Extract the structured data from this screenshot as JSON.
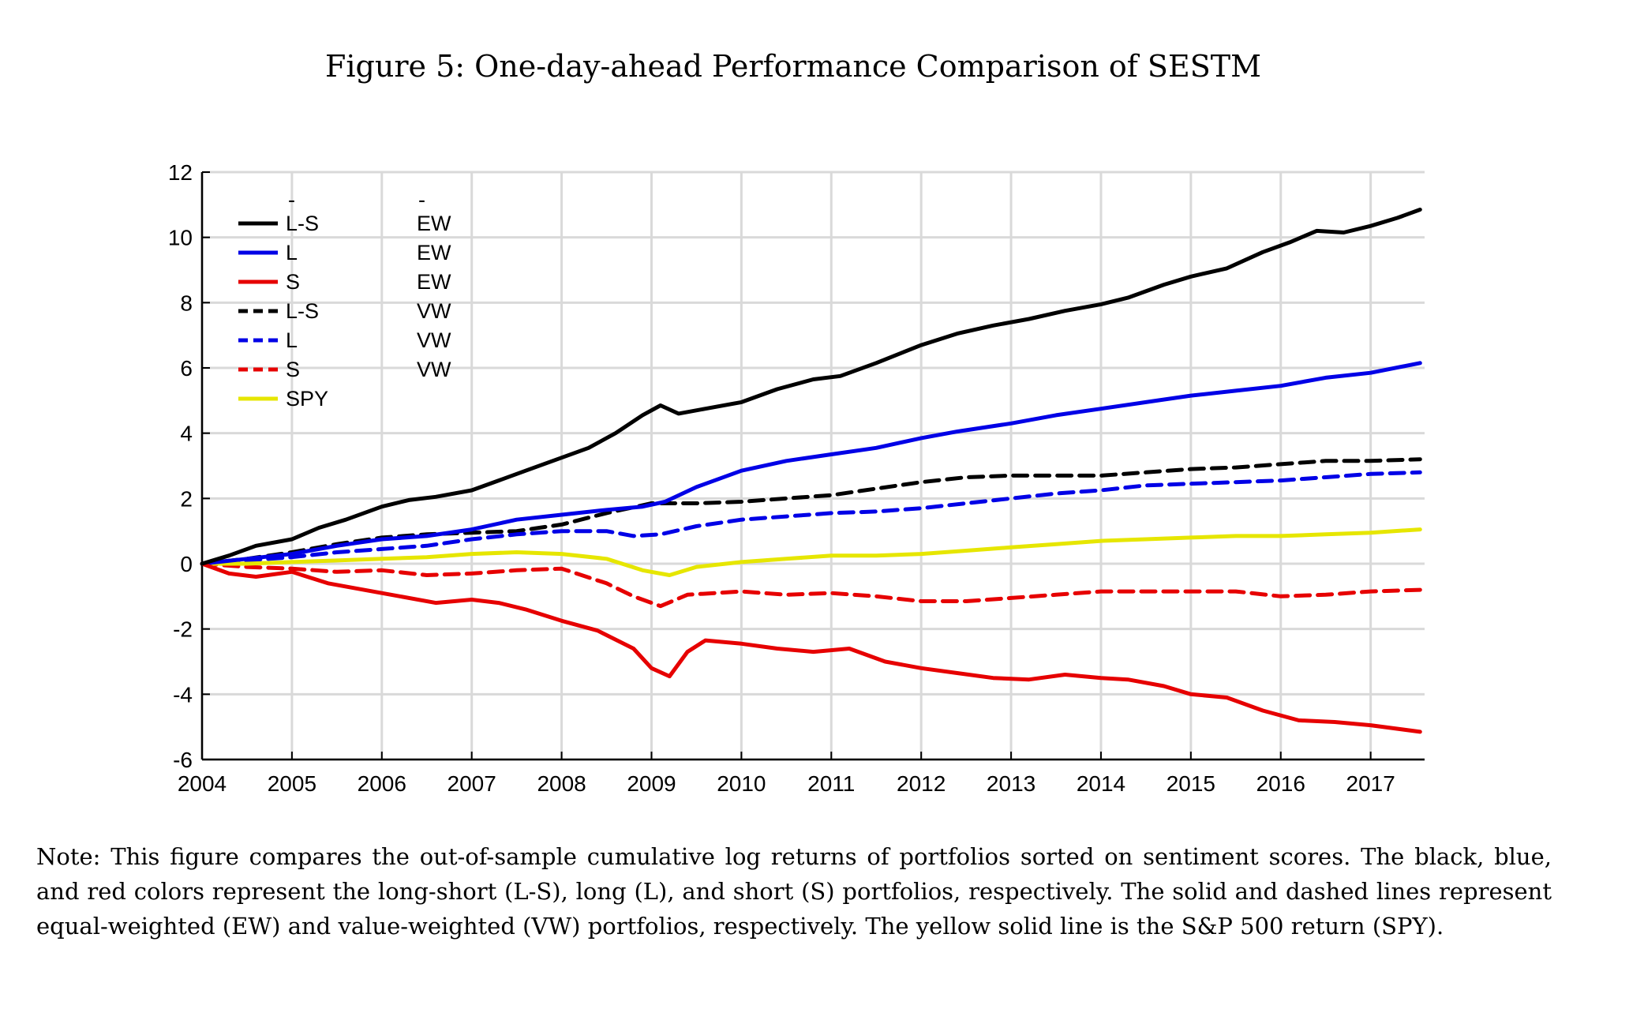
{
  "figure": {
    "title": "Figure 5: One-day-ahead Performance Comparison of SESTM",
    "note": "Note: This figure compares the out-of-sample cumulative log returns of portfolios sorted on sentiment scores. The black, blue, and red colors represent the long-short (L-S), long (L), and short (S) portfolios, respectively. The solid and dashed lines represent equal-weighted (EW) and value-weighted (VW) portfolios, respectively. The yellow solid line is the S&P 500 return (SPY)."
  },
  "chart_data": {
    "type": "line",
    "title": "",
    "xlabel": "",
    "ylabel": "",
    "xlim": [
      2004,
      2017.6
    ],
    "ylim": [
      -6,
      12
    ],
    "xticks": [
      "2004",
      "2005",
      "2006",
      "2007",
      "2008",
      "2009",
      "2010",
      "2011",
      "2012",
      "2013",
      "2014",
      "2015",
      "2016",
      "2017"
    ],
    "yticks": [
      "12",
      "10",
      "8",
      "6",
      "4",
      "2",
      "0",
      "-2",
      "-4",
      "-6"
    ],
    "grid": true,
    "legend": {
      "placement": "top-left",
      "header": [
        "-",
        "-"
      ],
      "entries": [
        {
          "label": "L-S",
          "weight": "EW"
        },
        {
          "label": "L",
          "weight": "EW"
        },
        {
          "label": "S",
          "weight": "EW"
        },
        {
          "label": "L-S",
          "weight": "VW"
        },
        {
          "label": "L",
          "weight": "VW"
        },
        {
          "label": "S",
          "weight": "VW"
        },
        {
          "label": "SPY",
          "weight": ""
        }
      ]
    },
    "series": [
      {
        "legend": "L-S EW",
        "color": "#000000",
        "dash": false,
        "points": [
          [
            2004,
            0
          ],
          [
            2004.3,
            0.25
          ],
          [
            2004.6,
            0.55
          ],
          [
            2005,
            0.75
          ],
          [
            2005.3,
            1.1
          ],
          [
            2005.6,
            1.35
          ],
          [
            2006,
            1.75
          ],
          [
            2006.3,
            1.95
          ],
          [
            2006.6,
            2.05
          ],
          [
            2007,
            2.25
          ],
          [
            2007.3,
            2.55
          ],
          [
            2007.6,
            2.85
          ],
          [
            2008,
            3.25
          ],
          [
            2008.3,
            3.55
          ],
          [
            2008.6,
            4.0
          ],
          [
            2008.9,
            4.55
          ],
          [
            2009.1,
            4.85
          ],
          [
            2009.3,
            4.6
          ],
          [
            2009.6,
            4.75
          ],
          [
            2010,
            4.95
          ],
          [
            2010.4,
            5.35
          ],
          [
            2010.8,
            5.65
          ],
          [
            2011.1,
            5.75
          ],
          [
            2011.5,
            6.15
          ],
          [
            2012,
            6.7
          ],
          [
            2012.4,
            7.05
          ],
          [
            2012.8,
            7.3
          ],
          [
            2013.2,
            7.5
          ],
          [
            2013.6,
            7.75
          ],
          [
            2014,
            7.95
          ],
          [
            2014.3,
            8.15
          ],
          [
            2014.7,
            8.55
          ],
          [
            2015,
            8.8
          ],
          [
            2015.4,
            9.05
          ],
          [
            2015.8,
            9.55
          ],
          [
            2016.1,
            9.85
          ],
          [
            2016.4,
            10.2
          ],
          [
            2016.7,
            10.15
          ],
          [
            2017,
            10.35
          ],
          [
            2017.3,
            10.6
          ],
          [
            2017.55,
            10.85
          ]
        ]
      },
      {
        "legend": "L EW",
        "color": "#0000e6",
        "dash": false,
        "points": [
          [
            2004,
            0
          ],
          [
            2004.5,
            0.15
          ],
          [
            2005,
            0.3
          ],
          [
            2005.5,
            0.55
          ],
          [
            2006,
            0.75
          ],
          [
            2006.5,
            0.85
          ],
          [
            2007,
            1.05
          ],
          [
            2007.5,
            1.35
          ],
          [
            2008,
            1.5
          ],
          [
            2008.5,
            1.65
          ],
          [
            2008.9,
            1.75
          ],
          [
            2009.15,
            1.9
          ],
          [
            2009.5,
            2.35
          ],
          [
            2010,
            2.85
          ],
          [
            2010.5,
            3.15
          ],
          [
            2011,
            3.35
          ],
          [
            2011.5,
            3.55
          ],
          [
            2012,
            3.85
          ],
          [
            2012.4,
            4.05
          ],
          [
            2013,
            4.3
          ],
          [
            2013.5,
            4.55
          ],
          [
            2014,
            4.75
          ],
          [
            2014.5,
            4.95
          ],
          [
            2015,
            5.15
          ],
          [
            2015.5,
            5.3
          ],
          [
            2016,
            5.45
          ],
          [
            2016.5,
            5.7
          ],
          [
            2017,
            5.85
          ],
          [
            2017.55,
            6.15
          ]
        ]
      },
      {
        "legend": "S EW",
        "color": "#e60000",
        "dash": false,
        "points": [
          [
            2004,
            0
          ],
          [
            2004.3,
            -0.3
          ],
          [
            2004.6,
            -0.4
          ],
          [
            2005,
            -0.25
          ],
          [
            2005.4,
            -0.6
          ],
          [
            2005.8,
            -0.8
          ],
          [
            2006.2,
            -1.0
          ],
          [
            2006.6,
            -1.2
          ],
          [
            2007,
            -1.1
          ],
          [
            2007.3,
            -1.2
          ],
          [
            2007.6,
            -1.4
          ],
          [
            2008,
            -1.75
          ],
          [
            2008.4,
            -2.05
          ],
          [
            2008.8,
            -2.6
          ],
          [
            2009,
            -3.2
          ],
          [
            2009.2,
            -3.45
          ],
          [
            2009.4,
            -2.7
          ],
          [
            2009.6,
            -2.35
          ],
          [
            2010,
            -2.45
          ],
          [
            2010.4,
            -2.6
          ],
          [
            2010.8,
            -2.7
          ],
          [
            2011.2,
            -2.6
          ],
          [
            2011.6,
            -3.0
          ],
          [
            2012,
            -3.2
          ],
          [
            2012.4,
            -3.35
          ],
          [
            2012.8,
            -3.5
          ],
          [
            2013.2,
            -3.55
          ],
          [
            2013.6,
            -3.4
          ],
          [
            2014,
            -3.5
          ],
          [
            2014.3,
            -3.55
          ],
          [
            2014.7,
            -3.75
          ],
          [
            2015,
            -4.0
          ],
          [
            2015.4,
            -4.1
          ],
          [
            2015.8,
            -4.5
          ],
          [
            2016.2,
            -4.8
          ],
          [
            2016.6,
            -4.85
          ],
          [
            2017,
            -4.95
          ],
          [
            2017.55,
            -5.15
          ]
        ]
      },
      {
        "legend": "L-S VW",
        "color": "#000000",
        "dash": true,
        "points": [
          [
            2004,
            0
          ],
          [
            2004.5,
            0.15
          ],
          [
            2005,
            0.35
          ],
          [
            2005.5,
            0.6
          ],
          [
            2006,
            0.8
          ],
          [
            2006.5,
            0.9
          ],
          [
            2007,
            0.95
          ],
          [
            2007.5,
            1.0
          ],
          [
            2008,
            1.2
          ],
          [
            2008.5,
            1.55
          ],
          [
            2009,
            1.85
          ],
          [
            2009.5,
            1.85
          ],
          [
            2010,
            1.9
          ],
          [
            2010.5,
            2.0
          ],
          [
            2011,
            2.1
          ],
          [
            2011.5,
            2.3
          ],
          [
            2012,
            2.5
          ],
          [
            2012.5,
            2.65
          ],
          [
            2013,
            2.7
          ],
          [
            2013.5,
            2.7
          ],
          [
            2014,
            2.7
          ],
          [
            2014.5,
            2.8
          ],
          [
            2015,
            2.9
          ],
          [
            2015.5,
            2.95
          ],
          [
            2016,
            3.05
          ],
          [
            2016.5,
            3.15
          ],
          [
            2017,
            3.15
          ],
          [
            2017.55,
            3.2
          ]
        ]
      },
      {
        "legend": "L VW",
        "color": "#0000e6",
        "dash": true,
        "points": [
          [
            2004,
            0
          ],
          [
            2004.5,
            0.1
          ],
          [
            2005,
            0.2
          ],
          [
            2005.5,
            0.35
          ],
          [
            2006,
            0.45
          ],
          [
            2006.5,
            0.55
          ],
          [
            2007,
            0.75
          ],
          [
            2007.5,
            0.9
          ],
          [
            2008,
            1.0
          ],
          [
            2008.5,
            1.0
          ],
          [
            2008.8,
            0.85
          ],
          [
            2009.1,
            0.9
          ],
          [
            2009.5,
            1.15
          ],
          [
            2010,
            1.35
          ],
          [
            2010.5,
            1.45
          ],
          [
            2011,
            1.55
          ],
          [
            2011.5,
            1.6
          ],
          [
            2012,
            1.7
          ],
          [
            2012.5,
            1.85
          ],
          [
            2013,
            2.0
          ],
          [
            2013.5,
            2.15
          ],
          [
            2014,
            2.25
          ],
          [
            2014.5,
            2.4
          ],
          [
            2015,
            2.45
          ],
          [
            2015.5,
            2.5
          ],
          [
            2016,
            2.55
          ],
          [
            2016.5,
            2.65
          ],
          [
            2017,
            2.75
          ],
          [
            2017.55,
            2.8
          ]
        ]
      },
      {
        "legend": "S VW",
        "color": "#e60000",
        "dash": true,
        "points": [
          [
            2004,
            0
          ],
          [
            2004.5,
            -0.1
          ],
          [
            2005,
            -0.15
          ],
          [
            2005.5,
            -0.25
          ],
          [
            2006,
            -0.2
          ],
          [
            2006.5,
            -0.35
          ],
          [
            2007,
            -0.3
          ],
          [
            2007.5,
            -0.2
          ],
          [
            2008,
            -0.15
          ],
          [
            2008.5,
            -0.6
          ],
          [
            2008.8,
            -1.0
          ],
          [
            2009.1,
            -1.3
          ],
          [
            2009.4,
            -0.95
          ],
          [
            2010,
            -0.85
          ],
          [
            2010.5,
            -0.95
          ],
          [
            2011,
            -0.9
          ],
          [
            2011.5,
            -1.0
          ],
          [
            2012,
            -1.15
          ],
          [
            2012.5,
            -1.15
          ],
          [
            2013,
            -1.05
          ],
          [
            2013.5,
            -0.95
          ],
          [
            2014,
            -0.85
          ],
          [
            2014.5,
            -0.85
          ],
          [
            2015,
            -0.85
          ],
          [
            2015.5,
            -0.85
          ],
          [
            2016,
            -1.0
          ],
          [
            2016.5,
            -0.95
          ],
          [
            2017,
            -0.85
          ],
          [
            2017.55,
            -0.8
          ]
        ]
      },
      {
        "legend": "SPY",
        "color": "#e6e600",
        "dash": false,
        "points": [
          [
            2004,
            0
          ],
          [
            2004.5,
            0.0
          ],
          [
            2005,
            0.05
          ],
          [
            2005.5,
            0.1
          ],
          [
            2006,
            0.15
          ],
          [
            2006.5,
            0.2
          ],
          [
            2007,
            0.3
          ],
          [
            2007.5,
            0.35
          ],
          [
            2008,
            0.3
          ],
          [
            2008.5,
            0.15
          ],
          [
            2008.9,
            -0.2
          ],
          [
            2009.2,
            -0.35
          ],
          [
            2009.5,
            -0.1
          ],
          [
            2010,
            0.05
          ],
          [
            2010.5,
            0.15
          ],
          [
            2011,
            0.25
          ],
          [
            2011.5,
            0.25
          ],
          [
            2012,
            0.3
          ],
          [
            2012.5,
            0.4
          ],
          [
            2013,
            0.5
          ],
          [
            2013.5,
            0.6
          ],
          [
            2014,
            0.7
          ],
          [
            2014.5,
            0.75
          ],
          [
            2015,
            0.8
          ],
          [
            2015.5,
            0.85
          ],
          [
            2016,
            0.85
          ],
          [
            2016.5,
            0.9
          ],
          [
            2017,
            0.95
          ],
          [
            2017.55,
            1.05
          ]
        ]
      }
    ]
  }
}
